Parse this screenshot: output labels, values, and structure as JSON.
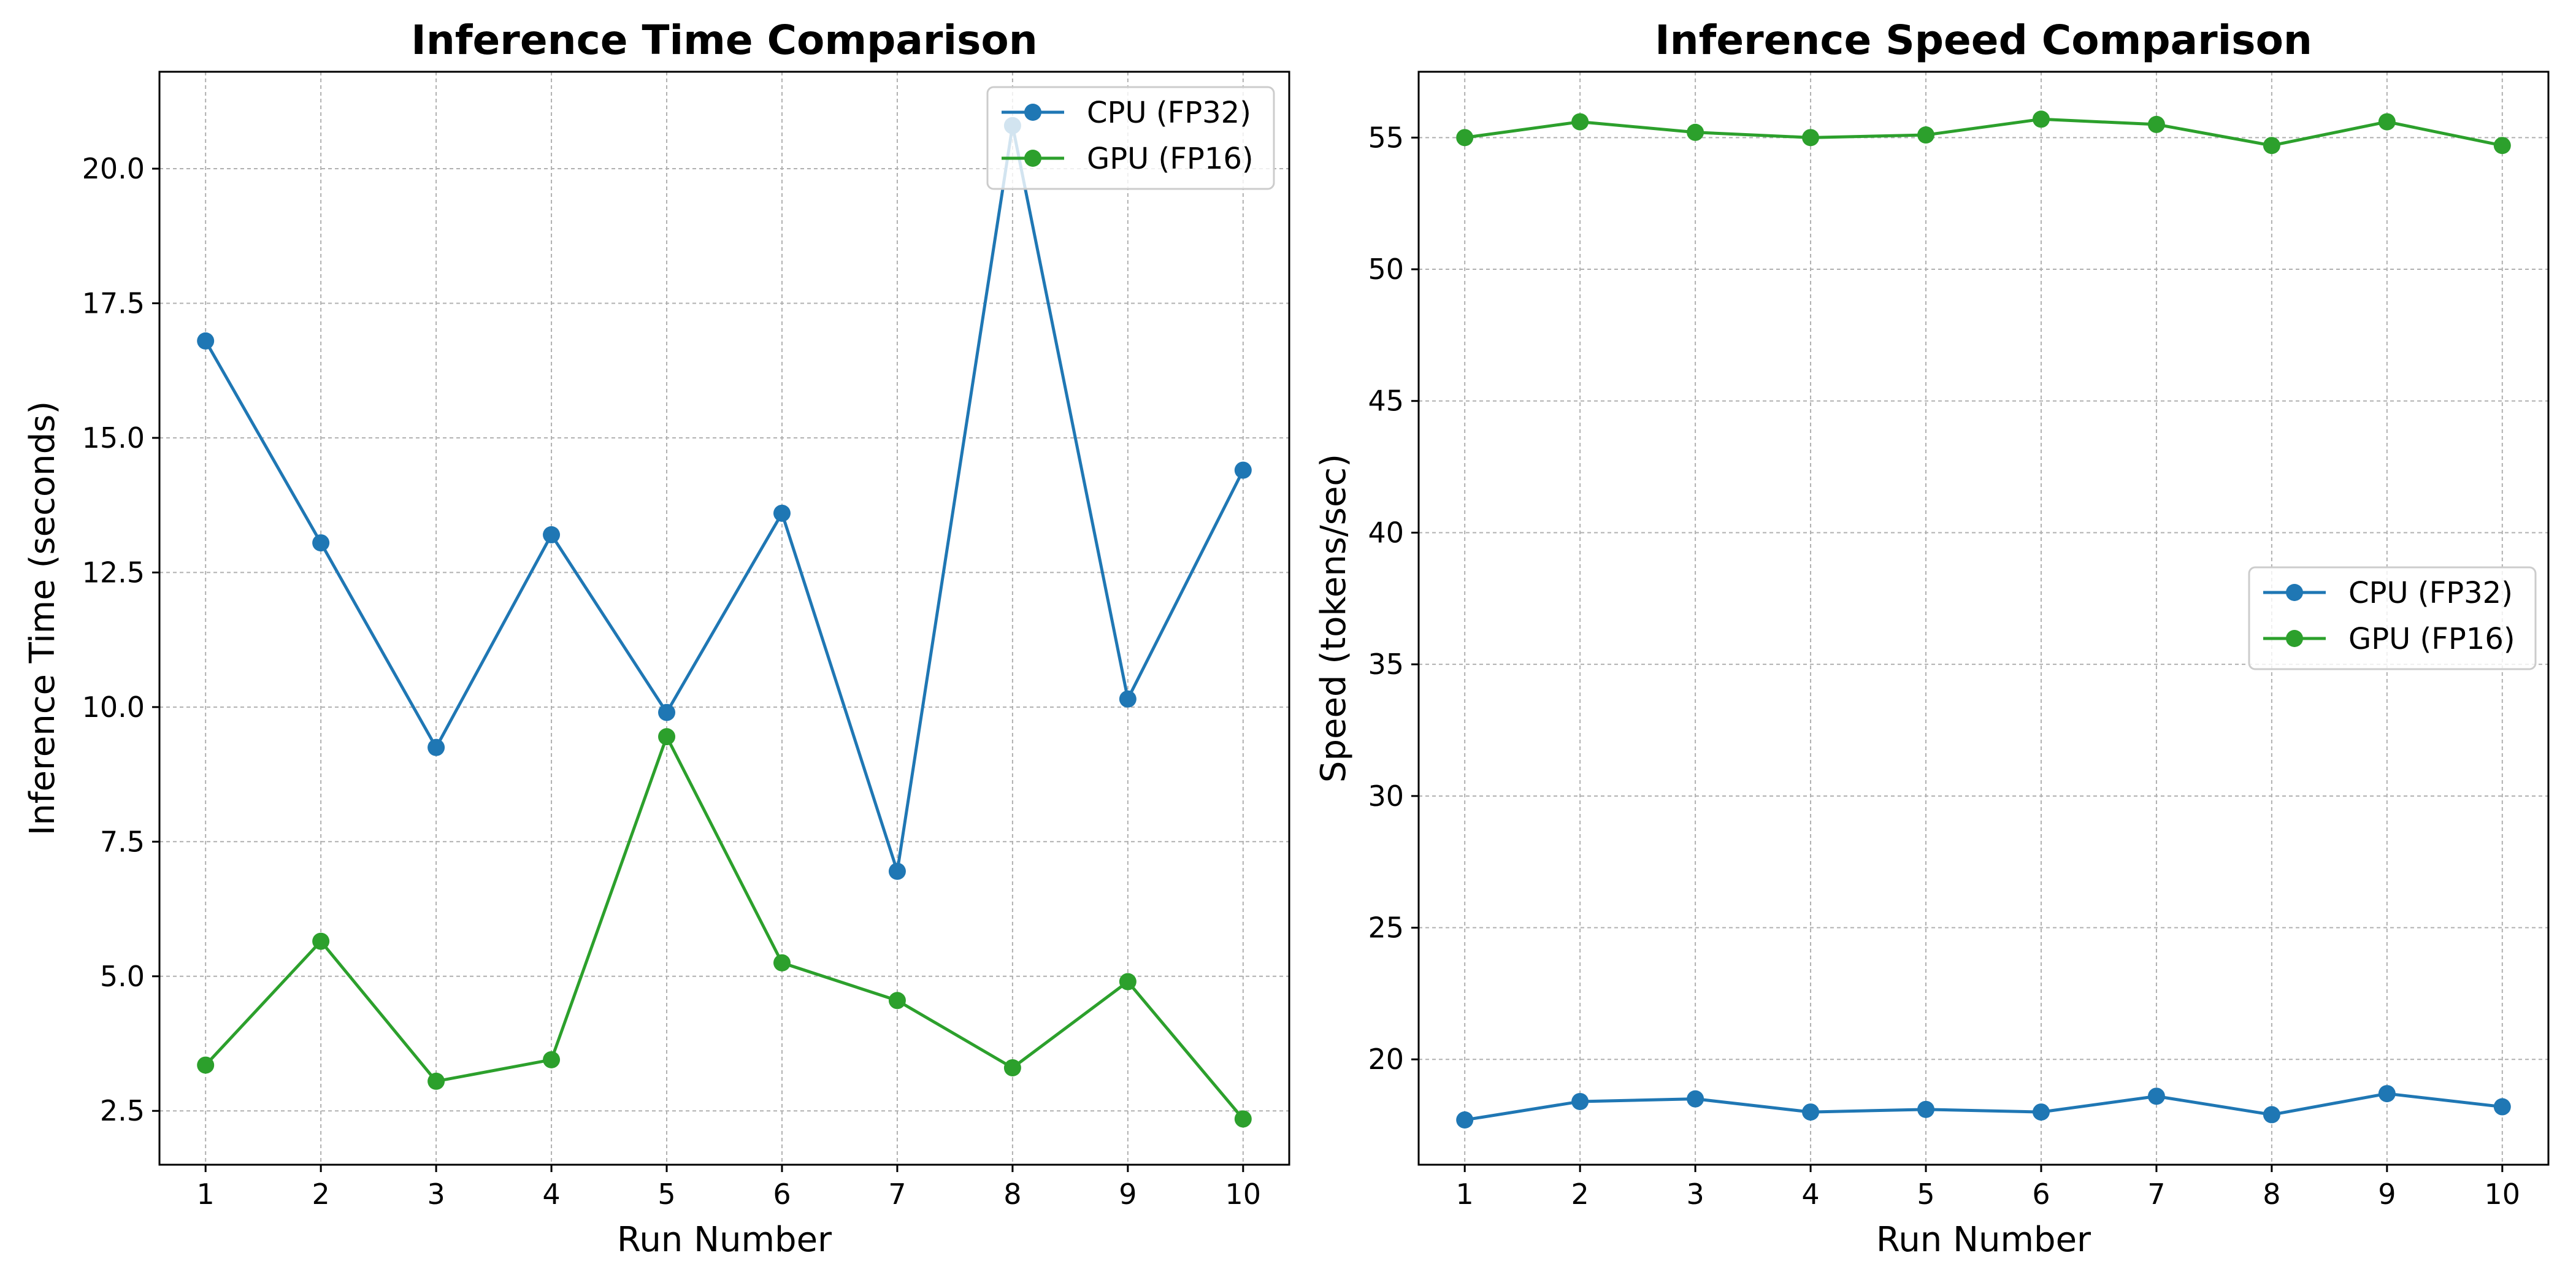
{
  "chart_data": [
    {
      "type": "line",
      "title": "Inference Time Comparison",
      "xlabel": "Run Number",
      "ylabel": "Inference Time (seconds)",
      "x": [
        1,
        2,
        3,
        4,
        5,
        6,
        7,
        8,
        9,
        10
      ],
      "xlim": [
        0.6,
        10.4
      ],
      "ylim": [
        1.5,
        21.8
      ],
      "yticks": [
        2.5,
        5.0,
        7.5,
        10.0,
        12.5,
        15.0,
        17.5,
        20.0
      ],
      "ytick_labels": [
        "2.5",
        "5.0",
        "7.5",
        "10.0",
        "12.5",
        "15.0",
        "17.5",
        "20.0"
      ],
      "xtick_labels": [
        "1",
        "2",
        "3",
        "4",
        "5",
        "6",
        "7",
        "8",
        "9",
        "10"
      ],
      "grid": true,
      "legend_position": "top-right",
      "series": [
        {
          "name": "CPU (FP32)",
          "color": "#1f77b4",
          "marker": "circle",
          "values": [
            16.8,
            13.05,
            9.25,
            13.2,
            9.9,
            13.6,
            6.95,
            20.8,
            10.15,
            14.4
          ]
        },
        {
          "name": "GPU (FP16)",
          "color": "#2ca02c",
          "marker": "circle",
          "values": [
            3.35,
            5.65,
            3.05,
            3.45,
            9.45,
            5.25,
            4.55,
            3.3,
            4.9,
            2.35
          ]
        }
      ]
    },
    {
      "type": "line",
      "title": "Inference Speed Comparison",
      "xlabel": "Run Number",
      "ylabel": "Speed (tokens/sec)",
      "x": [
        1,
        2,
        3,
        4,
        5,
        6,
        7,
        8,
        9,
        10
      ],
      "xlim": [
        0.6,
        10.4
      ],
      "ylim": [
        16.0,
        57.5
      ],
      "yticks": [
        20,
        25,
        30,
        35,
        40,
        45,
        50,
        55
      ],
      "ytick_labels": [
        "20",
        "25",
        "30",
        "35",
        "40",
        "45",
        "50",
        "55"
      ],
      "xtick_labels": [
        "1",
        "2",
        "3",
        "4",
        "5",
        "6",
        "7",
        "8",
        "9",
        "10"
      ],
      "grid": true,
      "legend_position": "center-right",
      "series": [
        {
          "name": "CPU (FP32)",
          "color": "#1f77b4",
          "marker": "circle",
          "values": [
            17.7,
            18.4,
            18.5,
            18.0,
            18.1,
            18.0,
            18.6,
            17.9,
            18.7,
            18.2
          ]
        },
        {
          "name": "GPU (FP16)",
          "color": "#2ca02c",
          "marker": "circle",
          "values": [
            55.0,
            55.6,
            55.2,
            55.0,
            55.1,
            55.7,
            55.5,
            54.7,
            55.6,
            54.7
          ]
        }
      ]
    }
  ]
}
